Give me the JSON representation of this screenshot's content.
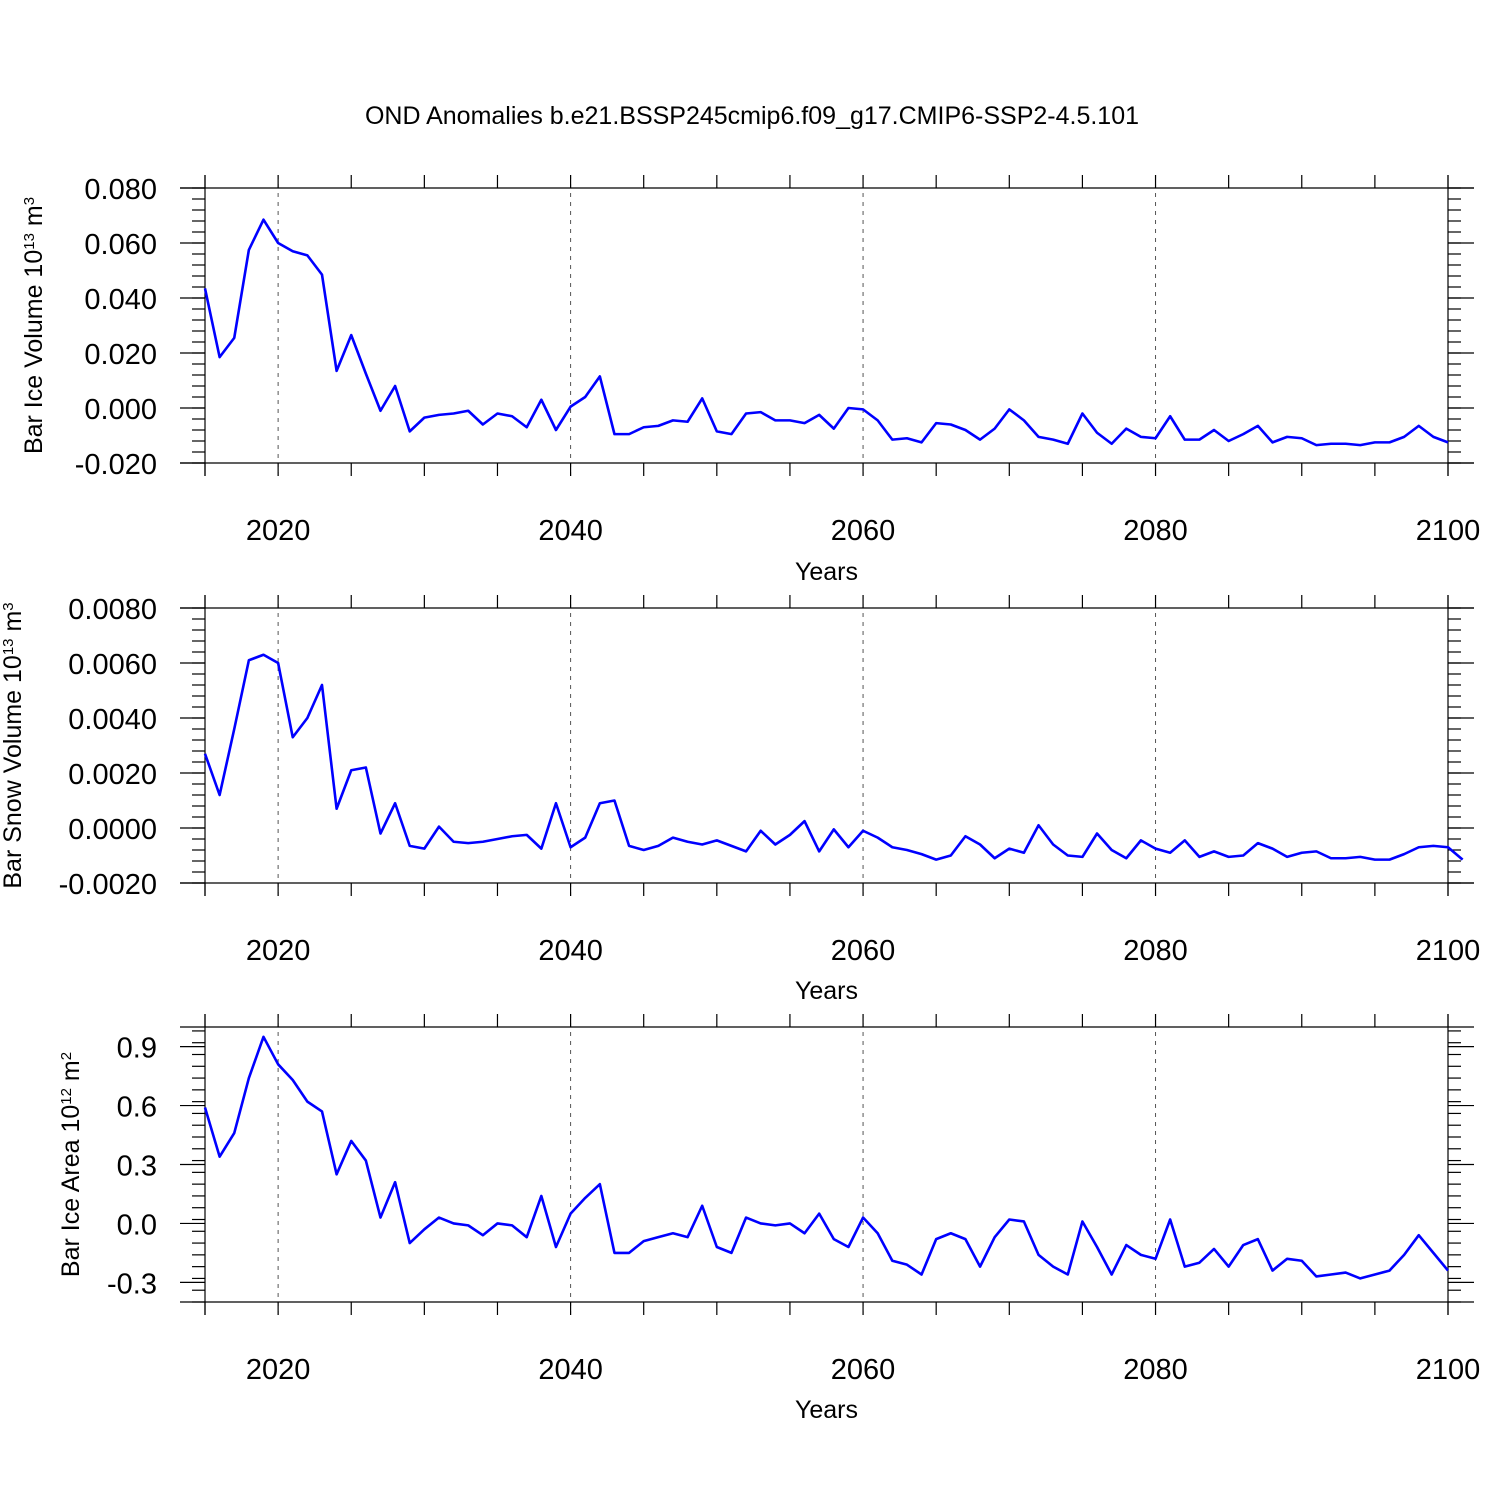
{
  "title": "OND Anomalies b.e21.BSSP245cmip6.f09_g17.CMIP6-SSP2-4.5.101",
  "colors": {
    "series": "#0000ff",
    "axes": "#000000",
    "grid": "#555555"
  },
  "chart_data": [
    {
      "type": "line",
      "ylabel_main": "Bar Ice Volume 10",
      "ylabel_exp": "13",
      "ylabel_tail": " m",
      "ylabel_unit_exp": "3",
      "xlabel": "Years",
      "xlim": [
        2015,
        2100
      ],
      "ylim": [
        -0.02,
        0.08
      ],
      "xticks": [
        2020,
        2040,
        2060,
        2080,
        2100
      ],
      "xtick_labels": [
        "2020",
        "2040",
        "2060",
        "2080",
        "2100"
      ],
      "yticks": [
        -0.02,
        0.0,
        0.02,
        0.04,
        0.06,
        0.08
      ],
      "ytick_labels": [
        "-0.020",
        "0.000",
        "0.020",
        "0.040",
        "0.060",
        "0.080"
      ],
      "grid_x": [
        2020,
        2040,
        2060,
        2080
      ],
      "x_start": 2015,
      "values": [
        0.0435,
        0.0185,
        0.0255,
        0.0575,
        0.0685,
        0.06,
        0.057,
        0.0555,
        0.0485,
        0.0135,
        0.0265,
        0.0125,
        -0.001,
        0.008,
        -0.0085,
        -0.0035,
        -0.0025,
        -0.002,
        -0.001,
        -0.006,
        -0.002,
        -0.003,
        -0.007,
        0.003,
        -0.008,
        0.0005,
        0.004,
        0.0115,
        -0.0095,
        -0.0095,
        -0.007,
        -0.0065,
        -0.0045,
        -0.005,
        0.0035,
        -0.0085,
        -0.0095,
        -0.002,
        -0.0015,
        -0.0045,
        -0.0045,
        -0.0055,
        -0.0025,
        -0.0075,
        0.0,
        -0.0005,
        -0.0045,
        -0.0115,
        -0.011,
        -0.0125,
        -0.0055,
        -0.006,
        -0.008,
        -0.0115,
        -0.0075,
        -0.0005,
        -0.0045,
        -0.0105,
        -0.0115,
        -0.013,
        -0.002,
        -0.009,
        -0.013,
        -0.0075,
        -0.0105,
        -0.011,
        -0.003,
        -0.0115,
        -0.0115,
        -0.008,
        -0.012,
        -0.0095,
        -0.0065,
        -0.0125,
        -0.0105,
        -0.011,
        -0.0135,
        -0.013,
        -0.013,
        -0.0135,
        -0.0125,
        -0.0125,
        -0.0105,
        -0.0065,
        -0.0105,
        -0.0125
      ]
    },
    {
      "type": "line",
      "ylabel_main": "Bar Snow Volume 10",
      "ylabel_exp": "13",
      "ylabel_tail": " m",
      "ylabel_unit_exp": "3",
      "xlabel": "Years",
      "xlim": [
        2015,
        2100
      ],
      "ylim": [
        -0.002,
        0.008
      ],
      "xticks": [
        2020,
        2040,
        2060,
        2080,
        2100
      ],
      "xtick_labels": [
        "2020",
        "2040",
        "2060",
        "2080",
        "2100"
      ],
      "yticks": [
        -0.002,
        0.0,
        0.002,
        0.004,
        0.006,
        0.008
      ],
      "ytick_labels": [
        "-0.0020",
        "0.0000",
        "0.0020",
        "0.0040",
        "0.0060",
        "0.0080"
      ],
      "grid_x": [
        2020,
        2040,
        2060,
        2080
      ],
      "x_start": 2015,
      "values": [
        0.0027,
        0.0012,
        0.0036,
        0.0061,
        0.0063,
        0.006,
        0.0033,
        0.004,
        0.0052,
        0.0007,
        0.0021,
        0.0022,
        -0.0002,
        0.0009,
        -0.00065,
        -0.00075,
        5e-05,
        -0.0005,
        -0.00055,
        -0.0005,
        -0.0004,
        -0.0003,
        -0.00025,
        -0.00075,
        0.0009,
        -0.0007,
        -0.00035,
        0.0009,
        0.001,
        -0.00065,
        -0.0008,
        -0.00065,
        -0.00035,
        -0.0005,
        -0.0006,
        -0.00045,
        -0.00065,
        -0.00085,
        -0.0001,
        -0.0006,
        -0.00025,
        0.00025,
        -0.00085,
        -5e-05,
        -0.0007,
        -0.0001,
        -0.00035,
        -0.0007,
        -0.0008,
        -0.00095,
        -0.00115,
        -0.001,
        -0.0003,
        -0.0006,
        -0.0011,
        -0.00075,
        -0.0009,
        0.0001,
        -0.0006,
        -0.001,
        -0.00105,
        -0.0002,
        -0.0008,
        -0.0011,
        -0.00045,
        -0.00075,
        -0.0009,
        -0.00045,
        -0.00105,
        -0.00085,
        -0.00105,
        -0.001,
        -0.00055,
        -0.00075,
        -0.00105,
        -0.0009,
        -0.00085,
        -0.0011,
        -0.0011,
        -0.00105,
        -0.00115,
        -0.00115,
        -0.00095,
        -0.0007,
        -0.00065,
        -0.0007,
        -0.00115
      ]
    },
    {
      "type": "line",
      "ylabel_main": "Bar Ice Area 10",
      "ylabel_exp": "12",
      "ylabel_tail": " m",
      "ylabel_unit_exp": "2",
      "xlabel": "Years",
      "xlim": [
        2015,
        2100
      ],
      "ylim": [
        -0.4,
        1.0
      ],
      "xticks": [
        2020,
        2040,
        2060,
        2080,
        2100
      ],
      "xtick_labels": [
        "2020",
        "2040",
        "2060",
        "2080",
        "2100"
      ],
      "yticks": [
        -0.3,
        0.0,
        0.3,
        0.6,
        0.9
      ],
      "ytick_labels": [
        "-0.3",
        "0.0",
        "0.3",
        "0.6",
        "0.9"
      ],
      "grid_x": [
        2020,
        2040,
        2060,
        2080
      ],
      "x_start": 2015,
      "values": [
        0.59,
        0.34,
        0.46,
        0.74,
        0.95,
        0.81,
        0.73,
        0.62,
        0.57,
        0.25,
        0.42,
        0.32,
        0.03,
        0.21,
        -0.1,
        -0.03,
        0.03,
        0.0,
        -0.01,
        -0.06,
        0.0,
        -0.01,
        -0.07,
        0.14,
        -0.12,
        0.05,
        0.13,
        0.2,
        -0.15,
        -0.15,
        -0.09,
        -0.07,
        -0.05,
        -0.07,
        0.09,
        -0.12,
        -0.15,
        0.03,
        0.0,
        -0.01,
        0.0,
        -0.05,
        0.05,
        -0.08,
        -0.12,
        0.03,
        -0.05,
        -0.19,
        -0.21,
        -0.26,
        -0.08,
        -0.05,
        -0.08,
        -0.22,
        -0.07,
        0.02,
        0.01,
        -0.16,
        -0.22,
        -0.26,
        0.01,
        -0.12,
        -0.26,
        -0.11,
        -0.16,
        -0.18,
        0.02,
        -0.22,
        -0.2,
        -0.13,
        -0.22,
        -0.11,
        -0.08,
        -0.24,
        -0.18,
        -0.19,
        -0.27,
        -0.26,
        -0.25,
        -0.28,
        -0.26,
        -0.24,
        -0.16,
        -0.06,
        -0.15,
        -0.24
      ]
    }
  ]
}
